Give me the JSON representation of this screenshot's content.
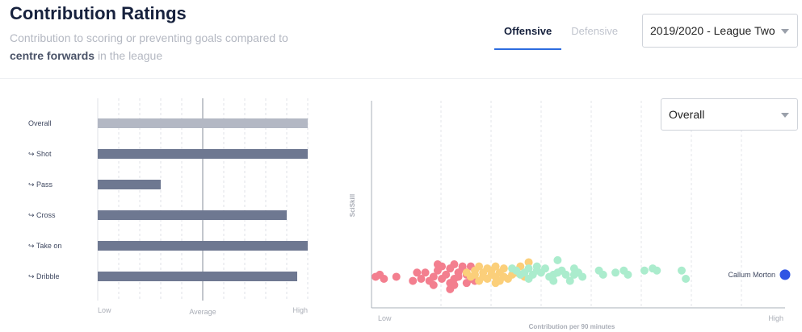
{
  "header": {
    "title": "Contribution Ratings",
    "subtitle_part1": "Contribution to scoring or preventing goals compared to",
    "subtitle_bold": "centre forwards",
    "subtitle_part2": "in the league"
  },
  "tabs": [
    {
      "label": "Offensive",
      "active": true
    },
    {
      "label": "Defensive",
      "active": false
    }
  ],
  "season_select": {
    "value": "2019/2020 - League Two"
  },
  "metric_select": {
    "value": "Overall"
  },
  "chart_data": [
    {
      "type": "bar",
      "orientation": "horizontal",
      "categories": [
        "Overall",
        "↪ Shot",
        "↪ Pass",
        "↪ Cross",
        "↪ Take on",
        "↪ Dribble"
      ],
      "values": [
        1.0,
        1.0,
        0.3,
        0.9,
        1.0,
        0.95
      ],
      "xlim": [
        0,
        1
      ],
      "tick_labels": [
        "Low",
        "Average",
        "High"
      ],
      "average_value": 0.5,
      "colors": {
        "overall": "#b3b8c4",
        "other": "#6e7891"
      }
    },
    {
      "type": "scatter",
      "xlabel": "Contribution per 90 minutes",
      "ylabel": "SciSkill",
      "x_tick_labels": [
        "Low",
        "High"
      ],
      "xlim": [
        0,
        1
      ],
      "ylim": [
        0,
        1
      ],
      "highlight": {
        "name": "Callum Morton",
        "x": 1.0,
        "y": 0.16,
        "color": "#2f55e4"
      },
      "series": [
        {
          "color": "#f37f8f",
          "points": [
            [
              0.01,
              0.15
            ],
            [
              0.02,
              0.16
            ],
            [
              0.03,
              0.14
            ],
            [
              0.06,
              0.15
            ],
            [
              0.11,
              0.17
            ],
            [
              0.1,
              0.13
            ],
            [
              0.12,
              0.14
            ],
            [
              0.13,
              0.17
            ],
            [
              0.14,
              0.13
            ],
            [
              0.15,
              0.15
            ],
            [
              0.16,
              0.18
            ],
            [
              0.17,
              0.14
            ],
            [
              0.18,
              0.16
            ],
            [
              0.17,
              0.2
            ],
            [
              0.19,
              0.19
            ],
            [
              0.2,
              0.14
            ],
            [
              0.2,
              0.21
            ],
            [
              0.21,
              0.17
            ],
            [
              0.19,
              0.12
            ],
            [
              0.19,
              0.09
            ],
            [
              0.2,
              0.11
            ],
            [
              0.21,
              0.15
            ],
            [
              0.22,
              0.19
            ],
            [
              0.23,
              0.16
            ],
            [
              0.24,
              0.14
            ],
            [
              0.22,
              0.2
            ],
            [
              0.23,
              0.12
            ],
            [
              0.25,
              0.13
            ],
            [
              0.24,
              0.2
            ],
            [
              0.16,
              0.21
            ],
            [
              0.15,
              0.11
            ]
          ]
        },
        {
          "color": "#fbcf7a",
          "points": [
            [
              0.23,
              0.17
            ],
            [
              0.24,
              0.15
            ],
            [
              0.25,
              0.16
            ],
            [
              0.25,
              0.18
            ],
            [
              0.26,
              0.13
            ],
            [
              0.26,
              0.2
            ],
            [
              0.27,
              0.15
            ],
            [
              0.27,
              0.17
            ],
            [
              0.28,
              0.14
            ],
            [
              0.28,
              0.19
            ],
            [
              0.29,
              0.16
            ],
            [
              0.29,
              0.18
            ],
            [
              0.3,
              0.15
            ],
            [
              0.3,
              0.2
            ],
            [
              0.31,
              0.13
            ],
            [
              0.31,
              0.17
            ],
            [
              0.32,
              0.19
            ],
            [
              0.3,
              0.12
            ],
            [
              0.32,
              0.15
            ],
            [
              0.33,
              0.14
            ],
            [
              0.34,
              0.16
            ],
            [
              0.35,
              0.17
            ],
            [
              0.36,
              0.2
            ],
            [
              0.37,
              0.15
            ],
            [
              0.38,
              0.22
            ]
          ]
        },
        {
          "color": "#abeccd",
          "points": [
            [
              0.34,
              0.19
            ],
            [
              0.35,
              0.18
            ],
            [
              0.36,
              0.16
            ],
            [
              0.37,
              0.17
            ],
            [
              0.38,
              0.19
            ],
            [
              0.38,
              0.14
            ],
            [
              0.39,
              0.16
            ],
            [
              0.4,
              0.18
            ],
            [
              0.4,
              0.2
            ],
            [
              0.41,
              0.17
            ],
            [
              0.42,
              0.19
            ],
            [
              0.43,
              0.15
            ],
            [
              0.44,
              0.16
            ],
            [
              0.45,
              0.17
            ],
            [
              0.46,
              0.18
            ],
            [
              0.47,
              0.16
            ],
            [
              0.48,
              0.13
            ],
            [
              0.49,
              0.19
            ],
            [
              0.5,
              0.17
            ],
            [
              0.51,
              0.15
            ],
            [
              0.45,
              0.23
            ],
            [
              0.49,
              0.16
            ],
            [
              0.55,
              0.18
            ],
            [
              0.56,
              0.16
            ],
            [
              0.59,
              0.17
            ],
            [
              0.61,
              0.18
            ],
            [
              0.62,
              0.16
            ],
            [
              0.66,
              0.18
            ],
            [
              0.68,
              0.19
            ],
            [
              0.69,
              0.18
            ],
            [
              0.75,
              0.18
            ],
            [
              0.76,
              0.14
            ],
            [
              0.44,
              0.13
            ]
          ]
        }
      ]
    }
  ]
}
